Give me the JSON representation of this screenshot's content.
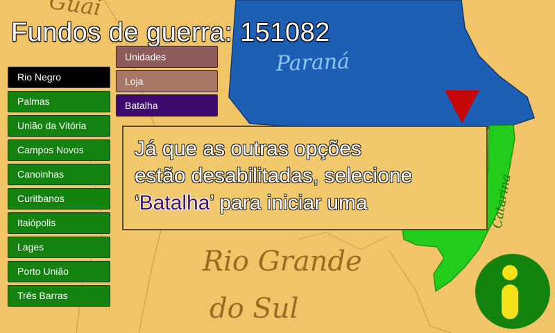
{
  "hud": {
    "funds_label": "Fundos de guerra:",
    "funds_value": "151082"
  },
  "cities": [
    {
      "label": "Rio Negro",
      "selected": true
    },
    {
      "label": "Palmas"
    },
    {
      "label": "União da Vitória"
    },
    {
      "label": "Campos Novos"
    },
    {
      "label": "Canoinhas"
    },
    {
      "label": "Curitbanos"
    },
    {
      "label": "Itaiópolis"
    },
    {
      "label": "Lages"
    },
    {
      "label": "Porto União"
    },
    {
      "label": "Três Barras"
    }
  ],
  "menu": {
    "units": "Unidades",
    "shop": "Loja",
    "battle": "Batalha"
  },
  "tutorial": {
    "line1": "Já que as outras opções",
    "line2": "estão desabilitadas, selecione",
    "quote_open": "‘",
    "highlight": "Batalha",
    "quote_close": "’ para iniciar uma"
  },
  "map_labels": {
    "parana": "Paraná",
    "santa_catarina": "Catarina",
    "rs_line1": "Rio Grande",
    "rs_line2": "do Sul",
    "top": "Guai"
  },
  "colors": {
    "background": "#f1c468",
    "parana": "#1d5fb5",
    "santa_catarina": "#22cc1a",
    "arrow": "#c40707",
    "selected_city": "#000000",
    "city": "#14820f"
  },
  "icons": {
    "info": "info-icon",
    "arrow": "down-arrow-icon"
  }
}
